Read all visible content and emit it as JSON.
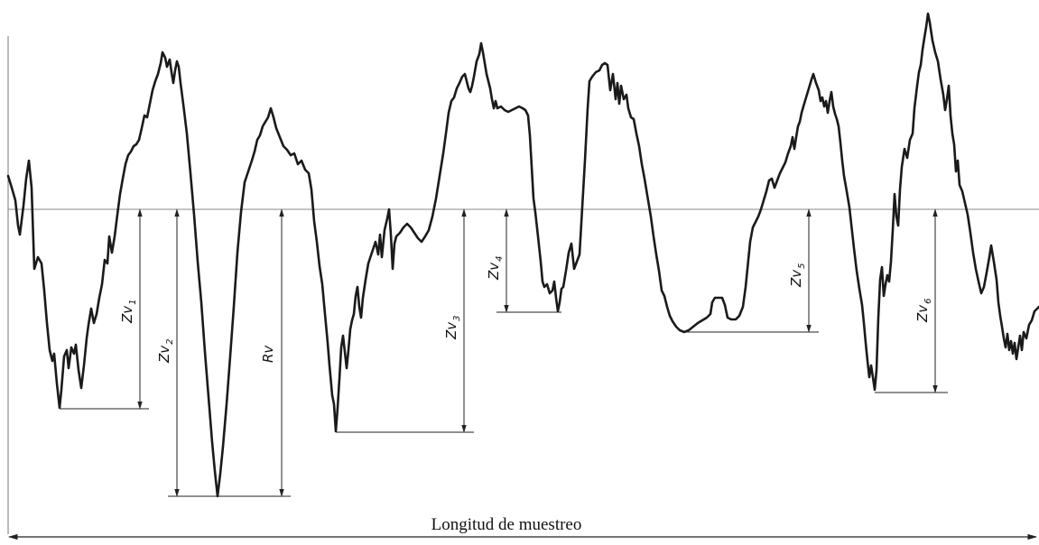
{
  "diagram": {
    "labels": {
      "zv1": {
        "main": "Zv",
        "sub": "1"
      },
      "zv2": {
        "main": "Zv",
        "sub": "2"
      },
      "rv": {
        "main": "Rv",
        "sub": ""
      },
      "zv3": {
        "main": "Zv",
        "sub": "3"
      },
      "zv4": {
        "main": "Zv",
        "sub": "4"
      },
      "zv5": {
        "main": "Zv",
        "sub": "5"
      },
      "zv6": {
        "main": "Zv",
        "sub": "6"
      }
    },
    "caption": "Longitud de muestreo",
    "colors": {
      "profile": "#1a1a1a",
      "mean_line": "#8a8a8a",
      "dimension": "#222222"
    }
  }
}
